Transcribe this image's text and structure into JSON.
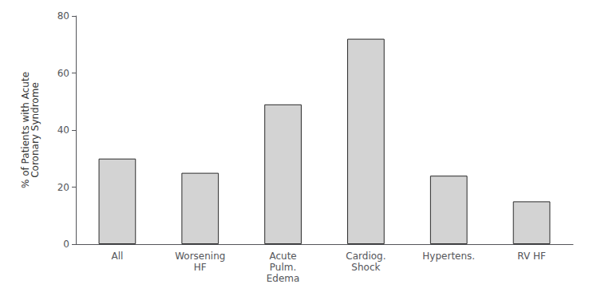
{
  "chart_data": {
    "type": "bar",
    "categories": [
      "All",
      "Worsening\nHF",
      "Acute\nPulm.\nEdema",
      "Cardiog.\nShock",
      "Hypertens.",
      "RV HF"
    ],
    "values": [
      30,
      25,
      49,
      72,
      24,
      15
    ],
    "color": "#d3d3d3",
    "ylabel": "% of Patients with Acute\nCoronary Syndrome",
    "ylim": [
      0,
      80
    ],
    "yticks": [
      0,
      20,
      40,
      60,
      80
    ],
    "grid": false
  }
}
